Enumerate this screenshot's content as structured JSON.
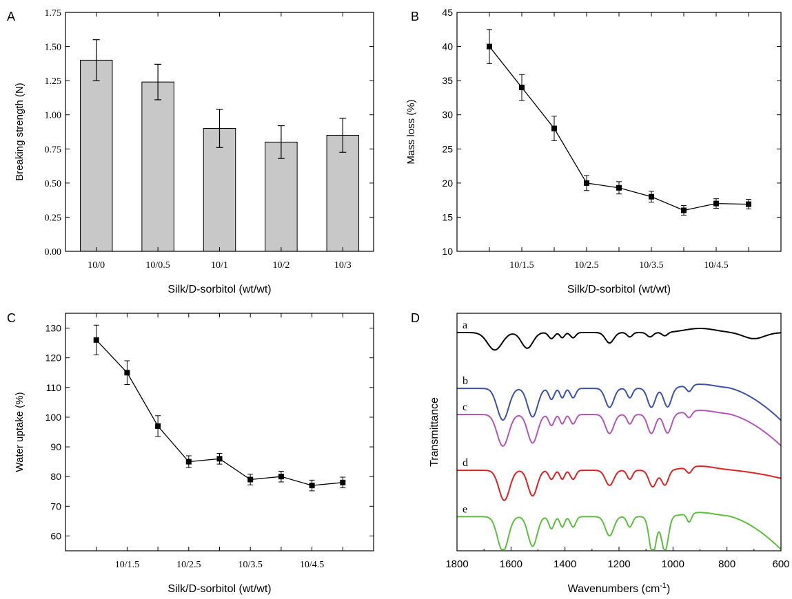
{
  "chart_data": [
    {
      "panel": "A",
      "type": "bar",
      "xlabel": "Silk/D-sorbitol (wt/wt)",
      "ylabel": "Breaking strength (N)",
      "ylim": [
        0,
        1.75
      ],
      "yticks": [
        "0.00",
        "0.25",
        "0.50",
        "0.75",
        "1.00",
        "1.25",
        "1.50",
        "1.75"
      ],
      "categories": [
        "10/0",
        "10/0.5",
        "10/1",
        "10/2",
        "10/3"
      ],
      "values": [
        1.4,
        1.24,
        0.9,
        0.8,
        0.85
      ],
      "errors": [
        0.15,
        0.13,
        0.14,
        0.12,
        0.125
      ],
      "bar_color": "#c8c8c8"
    },
    {
      "panel": "B",
      "type": "line",
      "xlabel": "Silk/D-sorbitol (wt/wt)",
      "ylabel": "Mass loss (%)",
      "ylim": [
        10,
        45
      ],
      "yticks": [
        "10",
        "15",
        "20",
        "25",
        "30",
        "35",
        "40",
        "45"
      ],
      "x": [
        1,
        2,
        3,
        4,
        5,
        6,
        7,
        8,
        9
      ],
      "xlim": [
        0,
        10
      ],
      "xtick_labels": [
        {
          "x": 2,
          "label": "10/1.5"
        },
        {
          "x": 4,
          "label": "10/2.5"
        },
        {
          "x": 6,
          "label": "10/3.5"
        },
        {
          "x": 8,
          "label": "10/4.5"
        }
      ],
      "values": [
        40,
        34,
        28,
        20,
        19.3,
        18,
        16,
        17,
        16.9
      ],
      "errors": [
        2.5,
        1.9,
        1.8,
        1.1,
        0.9,
        0.8,
        0.7,
        0.7,
        0.7
      ]
    },
    {
      "panel": "C",
      "type": "line",
      "xlabel": "Silk/D-sorbitol (wt/wt)",
      "ylabel": "Water uptake (%)",
      "ylim": [
        55,
        135
      ],
      "yticks": [
        "60",
        "70",
        "80",
        "90",
        "100",
        "110",
        "120",
        "130"
      ],
      "x": [
        1,
        2,
        3,
        4,
        5,
        6,
        7,
        8,
        9
      ],
      "xlim": [
        0,
        10
      ],
      "xtick_labels": [
        {
          "x": 2,
          "label": "10/1.5"
        },
        {
          "x": 4,
          "label": "10/2.5"
        },
        {
          "x": 6,
          "label": "10/3.5"
        },
        {
          "x": 8,
          "label": "10/4.5"
        }
      ],
      "values": [
        126,
        115,
        97,
        85,
        86,
        79,
        80,
        77,
        78
      ],
      "errors": [
        5,
        4,
        3.5,
        2,
        1.8,
        1.8,
        1.8,
        1.8,
        1.8
      ]
    },
    {
      "panel": "D",
      "type": "line",
      "xlabel": "Wavenumbers (cm",
      "xlabel_sup": "-1",
      "xlabel_close": ")",
      "ylabel": "Transmittance",
      "xlim": [
        1800,
        600
      ],
      "xticks": [
        "1800",
        "1600",
        "1400",
        "1200",
        "1000",
        "800",
        "600"
      ],
      "series": [
        {
          "name": "a",
          "color": "#000000",
          "offset": 0.0,
          "depth": 0.55,
          "tail": 0.0,
          "bands": [
            [
              1660,
              38,
              1.0
            ],
            [
              1540,
              30,
              0.9
            ],
            [
              1450,
              15,
              0.35
            ],
            [
              1410,
              12,
              0.3
            ],
            [
              1370,
              14,
              0.3
            ],
            [
              1235,
              22,
              0.6
            ],
            [
              1160,
              14,
              0.25
            ],
            [
              1085,
              16,
              0.25
            ],
            [
              1030,
              15,
              0.2
            ],
            [
              700,
              55,
              0.35
            ]
          ]
        },
        {
          "name": "b",
          "color": "#3a4fa8",
          "offset": 0.235,
          "depth": 1.0,
          "tail": 0.8,
          "bands": [
            [
              1630,
              30,
              1.0
            ],
            [
              1520,
              26,
              0.9
            ],
            [
              1450,
              14,
              0.35
            ],
            [
              1410,
              12,
              0.3
            ],
            [
              1370,
              14,
              0.3
            ],
            [
              1235,
              22,
              0.6
            ],
            [
              1160,
              14,
              0.3
            ],
            [
              1080,
              20,
              0.6
            ],
            [
              1020,
              20,
              0.6
            ],
            [
              940,
              14,
              0.2
            ]
          ]
        },
        {
          "name": "c",
          "color": "#b256b5",
          "offset": 0.345,
          "depth": 1.0,
          "tail": 0.78,
          "bands": [
            [
              1630,
              30,
              1.0
            ],
            [
              1520,
              26,
              0.9
            ],
            [
              1450,
              14,
              0.35
            ],
            [
              1410,
              12,
              0.3
            ],
            [
              1370,
              14,
              0.3
            ],
            [
              1235,
              22,
              0.6
            ],
            [
              1160,
              14,
              0.3
            ],
            [
              1080,
              20,
              0.6
            ],
            [
              1020,
              20,
              0.6
            ],
            [
              940,
              14,
              0.2
            ]
          ]
        },
        {
          "name": "d",
          "color": "#e02020",
          "offset": 0.58,
          "depth": 0.95,
          "tail": 0.2,
          "bands": [
            [
              1625,
              28,
              1.0
            ],
            [
              1520,
              24,
              0.85
            ],
            [
              1450,
              14,
              0.3
            ],
            [
              1410,
              12,
              0.3
            ],
            [
              1370,
              14,
              0.3
            ],
            [
              1235,
              22,
              0.5
            ],
            [
              1160,
              14,
              0.3
            ],
            [
              1075,
              20,
              0.55
            ],
            [
              1030,
              18,
              0.5
            ],
            [
              940,
              14,
              0.2
            ]
          ]
        },
        {
          "name": "e",
          "color": "#5dbe3e",
          "offset": 0.775,
          "depth": 1.1,
          "tail": 0.82,
          "bands": [
            [
              1630,
              28,
              1.0
            ],
            [
              1520,
              24,
              0.85
            ],
            [
              1450,
              14,
              0.35
            ],
            [
              1410,
              12,
              0.3
            ],
            [
              1370,
              14,
              0.3
            ],
            [
              1235,
              22,
              0.55
            ],
            [
              1160,
              14,
              0.3
            ],
            [
              1075,
              18,
              1.1
            ],
            [
              1030,
              18,
              1.0
            ],
            [
              940,
              12,
              0.25
            ]
          ]
        }
      ]
    }
  ]
}
